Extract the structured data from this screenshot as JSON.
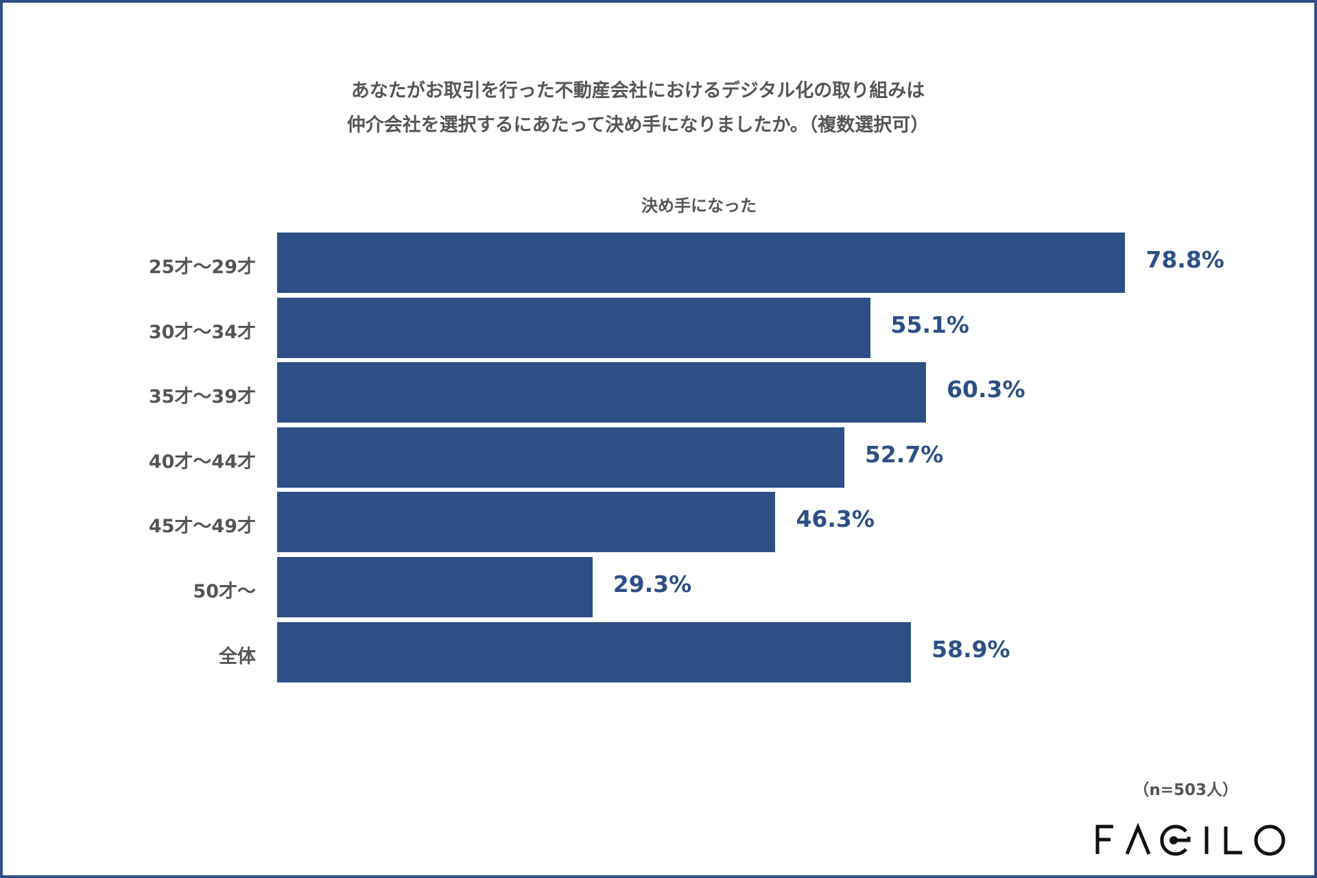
{
  "chart_data": {
    "type": "bar",
    "orientation": "horizontal",
    "title": [
      "あなたがお取引を行った不動産会社におけるデジタル化の取り組みは",
      "仲介会社を選択するにあたって決め手になりましたか。（複数選択可）"
    ],
    "series": [
      {
        "name": "決め手になった",
        "values": [
          78.8,
          55.1,
          60.3,
          52.7,
          46.3,
          29.3,
          58.9
        ]
      }
    ],
    "categories": [
      "25才〜29才",
      "30才〜34才",
      "35才〜39才",
      "40才〜44才",
      "45才〜49才",
      "50才〜",
      "全体"
    ],
    "data_labels": [
      "78.8%",
      "55.1%",
      "60.3%",
      "52.7%",
      "46.3%",
      "29.3%",
      "58.9%"
    ],
    "xlim": [
      0,
      100
    ],
    "grid": false,
    "legend": "top",
    "bar_color": "#2e4f86",
    "note": "（n=503人）"
  },
  "logo": "FAGILO"
}
